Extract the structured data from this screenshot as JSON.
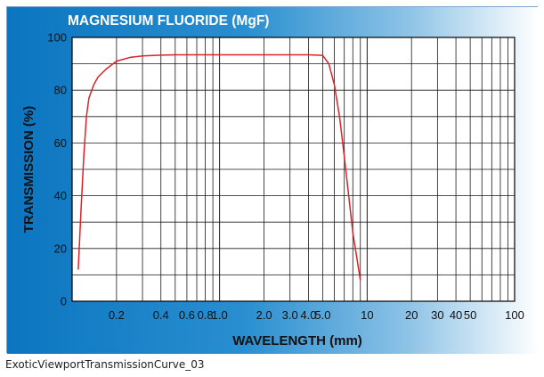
{
  "caption": "ExoticViewportTransmissionCurve_03",
  "chart_data": {
    "type": "line",
    "title": "MAGNESIUM FLUORIDE (MgF)",
    "xlabel": "WAVELENGTH (mm)",
    "ylabel": "TRANSMISSION (%)",
    "x_scale": "log",
    "xlim": [
      0.1,
      100
    ],
    "ylim": [
      0,
      100
    ],
    "grid": true,
    "y_ticks": [
      0,
      20,
      40,
      60,
      80,
      100
    ],
    "x_tick_labels": [
      {
        "value": 0.2,
        "label": "0.2"
      },
      {
        "value": 0.4,
        "label": "0.4"
      },
      {
        "value": 0.6,
        "label": "0.6"
      },
      {
        "value": 0.8,
        "label": "0.8"
      },
      {
        "value": 1.0,
        "label": "1.0"
      },
      {
        "value": 2.0,
        "label": "2.0"
      },
      {
        "value": 3.0,
        "label": "3.0"
      },
      {
        "value": 4.0,
        "label": "4.0"
      },
      {
        "value": 5.0,
        "label": "5.0"
      },
      {
        "value": 10,
        "label": "10"
      },
      {
        "value": 20,
        "label": "20"
      },
      {
        "value": 30,
        "label": "30"
      },
      {
        "value": 40,
        "label": "40"
      },
      {
        "value": 50,
        "label": "50"
      },
      {
        "value": 100,
        "label": "100"
      }
    ],
    "series": [
      {
        "color": "#d8232a",
        "x": [
          0.11,
          0.115,
          0.12,
          0.125,
          0.13,
          0.14,
          0.15,
          0.17,
          0.2,
          0.25,
          0.3,
          0.4,
          0.5,
          1.0,
          2.0,
          4.0,
          5.0,
          5.5,
          6.0,
          6.5,
          7.0,
          7.5,
          8.0,
          9.0
        ],
        "y": [
          12,
          35,
          55,
          70,
          77,
          82,
          85,
          88,
          91,
          92.5,
          93,
          93.3,
          93.4,
          93.4,
          93.4,
          93.4,
          93.2,
          90,
          82,
          70,
          55,
          40,
          26,
          8
        ]
      }
    ]
  }
}
